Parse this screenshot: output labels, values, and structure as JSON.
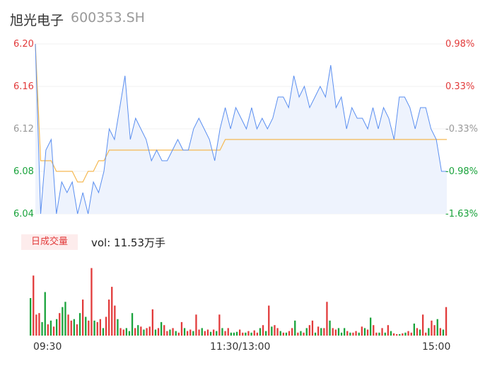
{
  "stock": {
    "name": "旭光电子",
    "code": "600353.SH"
  },
  "volume": {
    "tab_label": "日成交量",
    "summary": "vol: 11.53万手"
  },
  "colors": {
    "up": "#e23b3b",
    "down": "#1aa33c",
    "neutral": "#999999",
    "price_line": "#5b8ff0",
    "avg_line": "#f5b953",
    "area_fill": "#eef3fd"
  },
  "chart_data": {
    "type": "line",
    "series": [
      {
        "values": [
          6.2,
          6.04,
          6.1,
          6.11,
          6.04,
          6.07,
          6.06,
          6.07,
          6.04,
          6.06,
          6.04,
          6.07,
          6.06,
          6.08,
          6.12,
          6.11,
          6.14,
          6.17,
          6.11,
          6.13,
          6.12,
          6.11,
          6.09,
          6.1,
          6.09,
          6.09,
          6.1,
          6.11,
          6.1,
          6.1,
          6.12,
          6.13,
          6.12,
          6.11,
          6.09,
          6.12,
          6.14,
          6.12,
          6.14,
          6.13,
          6.12,
          6.14,
          6.12,
          6.13,
          6.12,
          6.13,
          6.15,
          6.15,
          6.14,
          6.17,
          6.15,
          6.16,
          6.14,
          6.15,
          6.16,
          6.15,
          6.18,
          6.14,
          6.15,
          6.12,
          6.14,
          6.13,
          6.13,
          6.12,
          6.14,
          6.12,
          6.14,
          6.13,
          6.11,
          6.15,
          6.15,
          6.14,
          6.12,
          6.14,
          6.14,
          6.12,
          6.11,
          6.08,
          6.08
        ]
      },
      {
        "values": [
          6.2,
          6.09,
          6.09,
          6.09,
          6.08,
          6.08,
          6.08,
          6.08,
          6.07,
          6.07,
          6.08,
          6.08,
          6.09,
          6.09,
          6.1,
          6.1,
          6.1,
          6.1,
          6.1,
          6.1,
          6.1,
          6.1,
          6.1,
          6.1,
          6.1,
          6.1,
          6.1,
          6.1,
          6.1,
          6.1,
          6.1,
          6.1,
          6.1,
          6.1,
          6.1,
          6.1,
          6.11,
          6.11,
          6.11,
          6.11,
          6.11,
          6.11,
          6.11,
          6.11,
          6.11,
          6.11,
          6.11,
          6.11,
          6.11,
          6.11,
          6.11,
          6.11,
          6.11,
          6.11,
          6.11,
          6.11,
          6.11,
          6.11,
          6.11,
          6.11,
          6.11,
          6.11,
          6.11,
          6.11,
          6.11,
          6.11,
          6.11,
          6.11,
          6.11,
          6.11,
          6.11,
          6.11,
          6.11,
          6.11,
          6.11,
          6.11,
          6.11,
          6.11,
          6.11
        ]
      }
    ],
    "ylim": [
      6.04,
      6.2
    ],
    "y_ticks_left": [
      "6.20",
      "6.16",
      "6.12",
      "6.08",
      "6.04"
    ],
    "y_ticks_right": [
      "0.98%",
      "0.33%",
      "-0.33%",
      "-0.98%",
      "-1.63%"
    ],
    "x_ticks": [
      "09:30",
      "11:30/13:00",
      "15:00"
    ],
    "volume_bars": {
      "max": 100,
      "values": [
        50,
        80,
        28,
        30,
        18,
        58,
        15,
        20,
        12,
        22,
        30,
        38,
        45,
        28,
        20,
        22,
        15,
        30,
        48,
        25,
        20,
        90,
        20,
        18,
        22,
        10,
        25,
        48,
        65,
        40,
        22,
        10,
        8,
        10,
        6,
        30,
        10,
        14,
        12,
        8,
        10,
        12,
        35,
        8,
        10,
        18,
        14,
        6,
        8,
        10,
        6,
        4,
        18,
        10,
        6,
        8,
        6,
        28,
        8,
        10,
        6,
        8,
        5,
        8,
        6,
        28,
        10,
        6,
        10,
        4,
        4,
        5,
        8,
        4,
        4,
        6,
        4,
        7,
        4,
        10,
        14,
        6,
        40,
        12,
        14,
        10,
        6,
        4,
        4,
        6,
        10,
        20,
        4,
        6,
        4,
        10,
        14,
        20,
        4,
        12,
        10,
        10,
        45,
        20,
        10,
        8,
        10,
        4,
        10,
        6,
        4,
        4,
        6,
        4,
        12,
        10,
        8,
        24,
        14,
        4,
        4,
        10,
        4,
        14,
        6,
        3,
        2,
        2,
        3,
        4,
        6,
        4,
        16,
        10,
        8,
        28,
        4,
        10,
        20,
        14,
        22,
        10,
        8,
        38
      ],
      "up_flags": [
        0,
        1,
        1,
        1,
        0,
        0,
        1,
        0,
        1,
        0,
        1,
        0,
        0,
        1,
        1,
        0,
        1,
        0,
        1,
        0,
        1,
        1,
        0,
        1,
        1,
        0,
        1,
        1,
        1,
        1,
        0,
        1,
        1,
        0,
        0,
        0,
        1,
        0,
        1,
        0,
        1,
        1,
        1,
        0,
        1,
        0,
        1,
        1,
        0,
        1,
        0,
        1,
        1,
        0,
        1,
        1,
        0,
        1,
        1,
        0,
        1,
        1,
        0,
        1,
        0,
        1,
        0,
        1,
        1,
        0,
        0,
        0,
        1,
        1,
        0,
        1,
        0,
        1,
        1,
        0,
        1,
        0,
        1,
        0,
        1,
        1,
        0,
        1,
        0,
        1,
        1,
        0,
        1,
        0,
        1,
        0,
        1,
        1,
        0,
        1,
        0,
        1,
        1,
        0,
        1,
        1,
        0,
        0,
        0,
        1,
        0,
        1,
        1,
        0,
        1,
        0,
        1,
        0,
        1,
        1,
        0,
        1,
        0,
        1,
        0,
        1,
        1,
        0,
        1,
        0,
        1,
        1,
        0,
        1,
        0,
        1,
        1,
        0,
        1,
        1,
        0,
        1,
        0,
        1
      ]
    }
  }
}
